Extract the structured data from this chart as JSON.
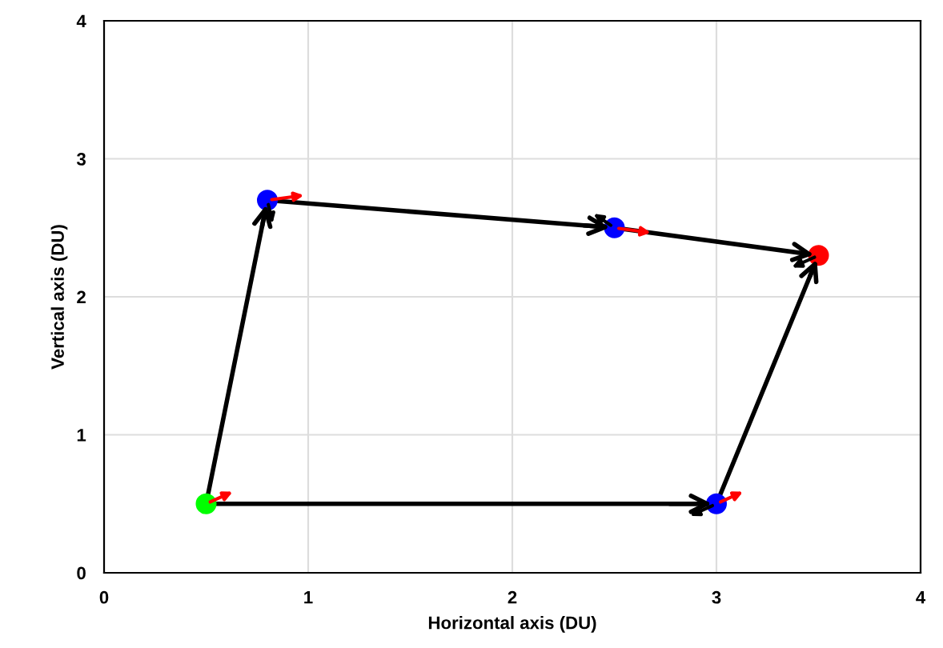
{
  "chart_data": {
    "type": "line",
    "xlabel": "Horizontal axis (DU)",
    "ylabel": "Vertical axis (DU)",
    "series": [
      {
        "color": "#000000",
        "x": [
          0.5,
          0.8,
          2.5,
          3.5
        ],
        "values": [
          0.5,
          2.7,
          2.5,
          2.3
        ]
      },
      {
        "color": "#000000",
        "x": [
          0.5,
          3.0,
          3.5
        ],
        "values": [
          0.5,
          0.5,
          2.3
        ]
      },
      {
        "type": "scatter",
        "marker": "circle",
        "x": [
          0.5,
          0.8,
          2.5,
          3.5,
          3.0
        ],
        "values": [
          0.5,
          2.7,
          2.5,
          2.3,
          0.5
        ],
        "colors": [
          "#00ff00",
          "#0000ff",
          "#0000ff",
          "#ff0000",
          "#0000ff"
        ]
      }
    ],
    "xlim": [
      0,
      4
    ],
    "ylim": [
      0,
      4
    ],
    "xticks": [
      0,
      1,
      2,
      3,
      4
    ],
    "yticks": [
      0,
      1,
      2,
      3,
      4
    ],
    "grid": true
  }
}
